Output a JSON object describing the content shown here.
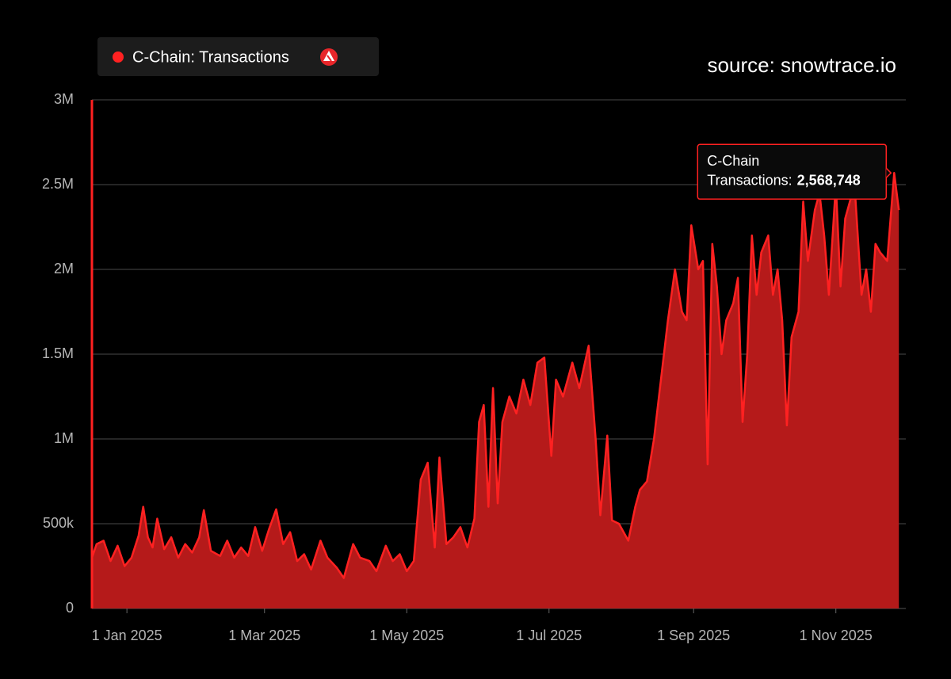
{
  "chart_data": {
    "type": "area",
    "source": "source: snowtrace.io",
    "x": [
      "2024-12-17",
      "2024-12-19",
      "2024-12-22",
      "2024-12-25",
      "2024-12-28",
      "2024-12-31",
      "2025-01-03",
      "2025-01-06",
      "2025-01-08",
      "2025-01-10",
      "2025-01-12",
      "2025-01-14",
      "2025-01-17",
      "2025-01-20",
      "2025-01-23",
      "2025-01-26",
      "2025-01-29",
      "2025-02-01",
      "2025-02-03",
      "2025-02-06",
      "2025-02-10",
      "2025-02-13",
      "2025-02-16",
      "2025-02-19",
      "2025-02-22",
      "2025-02-25",
      "2025-02-28",
      "2025-03-03",
      "2025-03-06",
      "2025-03-09",
      "2025-03-12",
      "2025-03-15",
      "2025-03-18",
      "2025-03-21",
      "2025-03-25",
      "2025-03-28",
      "2025-04-01",
      "2025-04-04",
      "2025-04-08",
      "2025-04-11",
      "2025-04-15",
      "2025-04-18",
      "2025-04-22",
      "2025-04-25",
      "2025-04-28",
      "2025-05-01",
      "2025-05-04",
      "2025-05-07",
      "2025-05-10",
      "2025-05-13",
      "2025-05-15",
      "2025-05-18",
      "2025-05-21",
      "2025-05-24",
      "2025-05-27",
      "2025-05-30",
      "2025-06-01",
      "2025-06-03",
      "2025-06-05",
      "2025-06-07",
      "2025-06-09",
      "2025-06-11",
      "2025-06-14",
      "2025-06-17",
      "2025-06-20",
      "2025-06-23",
      "2025-06-26",
      "2025-06-29",
      "2025-07-02",
      "2025-07-04",
      "2025-07-07",
      "2025-07-11",
      "2025-07-14",
      "2025-07-18",
      "2025-07-21",
      "2025-07-23",
      "2025-07-26",
      "2025-07-28",
      "2025-07-31",
      "2025-08-04",
      "2025-08-07",
      "2025-08-09",
      "2025-08-12",
      "2025-08-15",
      "2025-08-18",
      "2025-08-21",
      "2025-08-24",
      "2025-08-27",
      "2025-08-29",
      "2025-08-31",
      "2025-09-03",
      "2025-09-05",
      "2025-09-07",
      "2025-09-09",
      "2025-09-11",
      "2025-09-13",
      "2025-09-15",
      "2025-09-18",
      "2025-09-20",
      "2025-09-22",
      "2025-09-24",
      "2025-09-26",
      "2025-09-28",
      "2025-09-30",
      "2025-10-03",
      "2025-10-05",
      "2025-10-07",
      "2025-10-09",
      "2025-10-11",
      "2025-10-13",
      "2025-10-16",
      "2025-10-18",
      "2025-10-20",
      "2025-10-23",
      "2025-10-25",
      "2025-10-27",
      "2025-10-29",
      "2025-11-01",
      "2025-11-03",
      "2025-11-05",
      "2025-11-07",
      "2025-11-09",
      "2025-11-12",
      "2025-11-14",
      "2025-11-16",
      "2025-11-18",
      "2025-11-20",
      "2025-11-23",
      "2025-11-26",
      "2025-11-28"
    ],
    "series": [
      {
        "name": "C-Chain: Transactions",
        "color": "#ff2121",
        "fill": "#b51a1a",
        "values": [
          300000,
          380000,
          400000,
          280000,
          370000,
          250000,
          300000,
          430000,
          600000,
          420000,
          360000,
          530000,
          350000,
          420000,
          300000,
          380000,
          330000,
          420000,
          580000,
          340000,
          310000,
          400000,
          300000,
          360000,
          310000,
          480000,
          340000,
          470000,
          585000,
          380000,
          450000,
          280000,
          320000,
          230000,
          400000,
          300000,
          240000,
          180000,
          380000,
          300000,
          280000,
          220000,
          370000,
          280000,
          320000,
          220000,
          280000,
          760000,
          860000,
          360000,
          890000,
          380000,
          420000,
          480000,
          360000,
          530000,
          1100000,
          1200000,
          600000,
          1300000,
          620000,
          1100000,
          1250000,
          1150000,
          1350000,
          1200000,
          1450000,
          1480000,
          900000,
          1350000,
          1250000,
          1450000,
          1300000,
          1550000,
          1000000,
          550000,
          1020000,
          520000,
          500000,
          400000,
          600000,
          700000,
          750000,
          1000000,
          1350000,
          1700000,
          2000000,
          1750000,
          1700000,
          2260000,
          2000000,
          2050000,
          850000,
          2150000,
          1900000,
          1500000,
          1700000,
          1800000,
          1950000,
          1100000,
          1500000,
          2200000,
          1850000,
          2100000,
          2200000,
          1850000,
          2000000,
          1700000,
          1080000,
          1600000,
          1750000,
          2400000,
          2050000,
          2350000,
          2450000,
          2200000,
          1850000,
          2500000,
          1900000,
          2300000,
          2400000,
          2500000,
          1850000,
          2000000,
          1750000,
          2150000,
          2100000,
          2050000,
          2568748,
          2350000
        ]
      }
    ],
    "xlim": [
      "2024-12-17",
      "2025-12-01"
    ],
    "xticks": [
      {
        "value": "2025-01-01",
        "label": "1 Jan 2025"
      },
      {
        "value": "2025-03-01",
        "label": "1 Mar 2025"
      },
      {
        "value": "2025-05-01",
        "label": "1 May 2025"
      },
      {
        "value": "2025-07-01",
        "label": "1 Jul 2025"
      },
      {
        "value": "2025-09-01",
        "label": "1 Sep 2025"
      },
      {
        "value": "2025-11-01",
        "label": "1 Nov 2025"
      }
    ],
    "ylim": [
      0,
      3000000
    ],
    "yticks": [
      0,
      {
        "value": 500000,
        "label": "500k"
      },
      {
        "value": 1000000,
        "label": "1M"
      },
      {
        "value": 1500000,
        "label": "1.5M"
      },
      {
        "value": 2000000,
        "label": "2M"
      },
      {
        "value": 2500000,
        "label": "2.5M"
      },
      {
        "value": 3000000,
        "label": "3M"
      }
    ],
    "grid": true,
    "tooltip": {
      "title": "C-Chain",
      "label": "Transactions:",
      "x": "2025-11-26",
      "value": 2568748,
      "value_label": "2,568,748"
    }
  }
}
